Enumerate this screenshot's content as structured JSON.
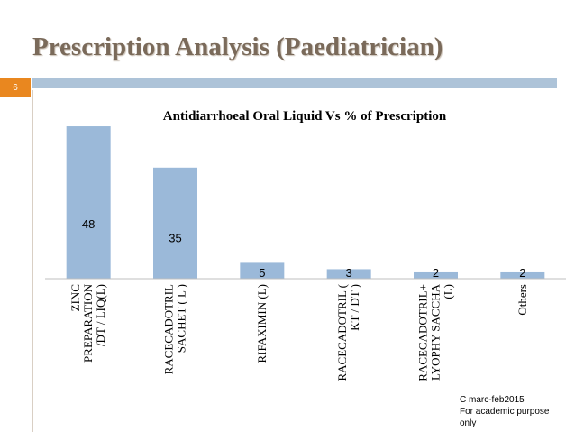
{
  "slide": {
    "title": "Prescription  Analysis (Paediatrician)",
    "page_number": "6",
    "note_lines": [
      "C marc-feb2015",
      "For academic purpose",
      "only"
    ]
  },
  "colors": {
    "bar": "#9bb9d9",
    "title": "#7a6a5a",
    "rule": "#adc3d8",
    "badge": "#e9871f"
  },
  "chart_data": {
    "type": "bar",
    "title": "Antidiarrhoeal Oral Liquid Vs % of Prescription",
    "categories": [
      [
        "ZINC",
        "PREPARATION",
        "/DT / LIQ(L)"
      ],
      [
        "RACECADOTRIL",
        "SACHET ( L )"
      ],
      [
        "RIFAXIMIN (L)"
      ],
      [
        "RACECADOTRIL (",
        "KT / DT )"
      ],
      [
        "RACECADOTRIL+",
        "LYOPHY SACCHA",
        "(L)"
      ],
      [
        "Others"
      ]
    ],
    "values": [
      48,
      35,
      5,
      3,
      2,
      2
    ],
    "data_labels": [
      "48",
      "35",
      "5",
      "3",
      "2",
      "2"
    ],
    "ylim": [
      0,
      50
    ],
    "xlabel": "",
    "ylabel": "",
    "grid": false,
    "legend": "none"
  }
}
